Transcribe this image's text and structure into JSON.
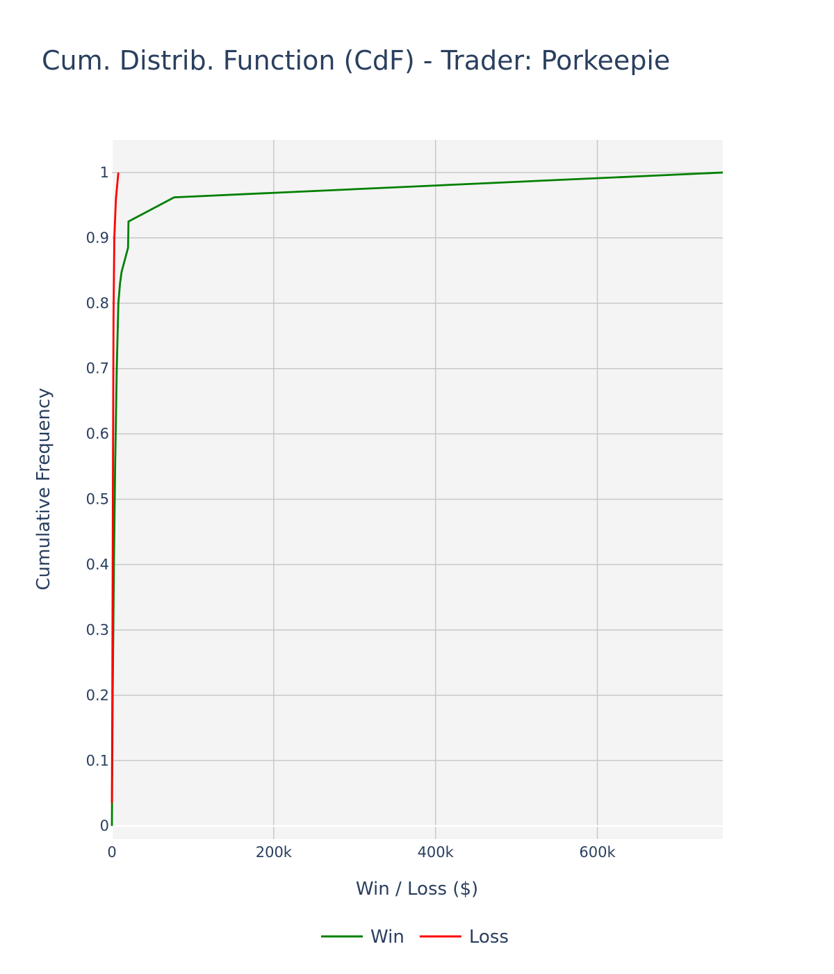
{
  "chart_data": {
    "type": "line",
    "title": "Cum. Distrib. Function (CdF) - Trader: Porkeepie",
    "xlabel": "Win / Loss ($)",
    "ylabel": "Cumulative Frequency",
    "xlim": [
      0,
      755000
    ],
    "ylim": [
      -0.02,
      1.05
    ],
    "x_ticks": [
      {
        "value": 0,
        "label": "0"
      },
      {
        "value": 200000,
        "label": "200k"
      },
      {
        "value": 400000,
        "label": "400k"
      },
      {
        "value": 600000,
        "label": "600k"
      }
    ],
    "y_ticks": [
      {
        "value": 0,
        "label": "0"
      },
      {
        "value": 0.1,
        "label": "0.1"
      },
      {
        "value": 0.2,
        "label": "0.2"
      },
      {
        "value": 0.3,
        "label": "0.3"
      },
      {
        "value": 0.4,
        "label": "0.4"
      },
      {
        "value": 0.5,
        "label": "0.5"
      },
      {
        "value": 0.6,
        "label": "0.6"
      },
      {
        "value": 0.7,
        "label": "0.7"
      },
      {
        "value": 0.8,
        "label": "0.8"
      },
      {
        "value": 0.9,
        "label": "0.9"
      },
      {
        "value": 1,
        "label": "1"
      }
    ],
    "grid": true,
    "legend_position": "bottom-center",
    "series": [
      {
        "name": "Win",
        "color": "#008000",
        "x": [
          0,
          1000,
          2500,
          4000,
          6000,
          8000,
          10000,
          12000,
          20000,
          20500,
          77000,
          755000
        ],
        "y": [
          0.0,
          0.2,
          0.4,
          0.55,
          0.7,
          0.8,
          0.83,
          0.848,
          0.885,
          0.925,
          0.962,
          1.0
        ]
      },
      {
        "name": "Loss",
        "color": "#ff0000",
        "x": [
          0,
          500,
          1200,
          2000,
          3000,
          5000,
          8000
        ],
        "y": [
          0.035,
          0.2,
          0.5,
          0.78,
          0.9,
          0.96,
          1.0
        ]
      }
    ]
  }
}
